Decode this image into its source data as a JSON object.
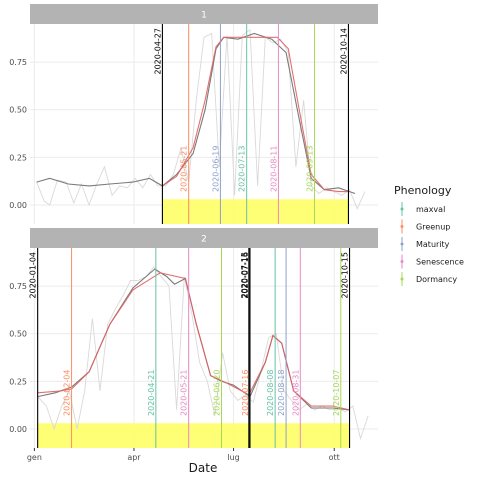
{
  "colors": {
    "strip_bg": "#b3b3b3",
    "strip_text": "#ffffff",
    "grid": "#ebebeb",
    "raw_line": "#d9d9d9",
    "smooth_line": "#7a7a7a",
    "fit_line": "#e06060",
    "fit_line_dark": "#7a2a2a",
    "highlight_band": "#ffff66",
    "cutoff_line": "#000000"
  },
  "x_axis": {
    "title": "Date",
    "ticks": [
      {
        "label": "gen",
        "date": "2020-01-01"
      },
      {
        "label": "apr",
        "date": "2020-04-01"
      },
      {
        "label": "lug",
        "date": "2020-07-01"
      },
      {
        "label": "ott",
        "date": "2020-10-01"
      }
    ],
    "range": [
      "2019-12-28",
      "2020-11-10"
    ]
  },
  "legend": {
    "title": "Phenology",
    "position": "right",
    "items": [
      {
        "label": "maxval",
        "color": "#66c2a5"
      },
      {
        "label": "Greenup",
        "color": "#fc8d62"
      },
      {
        "label": "Maturity",
        "color": "#8da0cb"
      },
      {
        "label": "Senescence",
        "color": "#e78ac3"
      },
      {
        "label": "Dormancy",
        "color": "#a6d854"
      }
    ]
  },
  "chart_data": [
    {
      "type": "line",
      "facet_label": "1",
      "ylim": [
        -0.1,
        0.95
      ],
      "y_ticks": [
        "0.00",
        "0.25",
        "0.50",
        "0.75"
      ],
      "y_tick_values": [
        0,
        0.25,
        0.5,
        0.75
      ],
      "cutoffs": [
        {
          "date": "2020-04-27",
          "label": "2020-04-27"
        },
        {
          "date": "2020-10-14",
          "label": "2020-10-14"
        }
      ],
      "highlight": {
        "from": "2020-04-27",
        "to": "2020-10-14",
        "y_top": 0.03
      },
      "phenology": [
        {
          "type": "Greenup",
          "date": "2020-05-21",
          "label": "2020-05-21",
          "color": "#fc8d62"
        },
        {
          "type": "Maturity",
          "date": "2020-06-19",
          "label": "2020-06-19",
          "color": "#8da0cb"
        },
        {
          "type": "maxval",
          "date": "2020-07-13",
          "label": "2020-07-13",
          "color": "#66c2a5"
        },
        {
          "type": "Senescence",
          "date": "2020-08-11",
          "label": "2020-08-11",
          "color": "#e78ac3"
        },
        {
          "type": "Dormancy",
          "date": "2020-09-13",
          "label": "2020-09-13",
          "color": "#a6d854"
        }
      ],
      "raw": [
        {
          "date": "2020-01-03",
          "y": 0.12
        },
        {
          "date": "2020-01-10",
          "y": 0.02
        },
        {
          "date": "2020-01-15",
          "y": 0.0
        },
        {
          "date": "2020-01-22",
          "y": 0.13
        },
        {
          "date": "2020-01-30",
          "y": 0.12
        },
        {
          "date": "2020-02-06",
          "y": 0.01
        },
        {
          "date": "2020-02-13",
          "y": 0.11
        },
        {
          "date": "2020-02-20",
          "y": 0.0
        },
        {
          "date": "2020-02-27",
          "y": 0.11
        },
        {
          "date": "2020-03-05",
          "y": 0.2
        },
        {
          "date": "2020-03-12",
          "y": 0.05
        },
        {
          "date": "2020-03-19",
          "y": 0.1
        },
        {
          "date": "2020-03-26",
          "y": 0.09
        },
        {
          "date": "2020-04-02",
          "y": 0.14
        },
        {
          "date": "2020-04-09",
          "y": 0.09
        },
        {
          "date": "2020-04-16",
          "y": 0.16
        },
        {
          "date": "2020-04-23",
          "y": 0.1
        },
        {
          "date": "2020-04-30",
          "y": 0.1
        },
        {
          "date": "2020-05-07",
          "y": 0.16
        },
        {
          "date": "2020-05-14",
          "y": 0.3
        },
        {
          "date": "2020-05-21",
          "y": 0.12
        },
        {
          "date": "2020-05-28",
          "y": 0.55
        },
        {
          "date": "2020-06-04",
          "y": 0.88
        },
        {
          "date": "2020-06-11",
          "y": 0.9
        },
        {
          "date": "2020-06-18",
          "y": 0.2
        },
        {
          "date": "2020-06-25",
          "y": 0.89
        },
        {
          "date": "2020-07-02",
          "y": 0.05
        },
        {
          "date": "2020-07-09",
          "y": 0.89
        },
        {
          "date": "2020-07-16",
          "y": 0.92
        },
        {
          "date": "2020-07-23",
          "y": 0.1
        },
        {
          "date": "2020-07-30",
          "y": 0.88
        },
        {
          "date": "2020-08-06",
          "y": 0.85
        },
        {
          "date": "2020-08-13",
          "y": 0.87
        },
        {
          "date": "2020-08-20",
          "y": 0.8
        },
        {
          "date": "2020-08-27",
          "y": 0.2
        },
        {
          "date": "2020-09-03",
          "y": 0.55
        },
        {
          "date": "2020-09-10",
          "y": 0.1
        },
        {
          "date": "2020-09-17",
          "y": 0.06
        },
        {
          "date": "2020-09-24",
          "y": 0.09
        },
        {
          "date": "2020-10-01",
          "y": 0.07
        },
        {
          "date": "2020-10-08",
          "y": 0.05
        },
        {
          "date": "2020-10-15",
          "y": 0.08
        },
        {
          "date": "2020-10-22",
          "y": -0.02
        },
        {
          "date": "2020-10-29",
          "y": 0.07
        }
      ],
      "smooth": [
        {
          "date": "2020-01-03",
          "y": 0.12
        },
        {
          "date": "2020-01-15",
          "y": 0.14
        },
        {
          "date": "2020-02-01",
          "y": 0.11
        },
        {
          "date": "2020-02-20",
          "y": 0.1
        },
        {
          "date": "2020-03-10",
          "y": 0.11
        },
        {
          "date": "2020-03-31",
          "y": 0.12
        },
        {
          "date": "2020-04-15",
          "y": 0.14
        },
        {
          "date": "2020-04-27",
          "y": 0.1
        },
        {
          "date": "2020-05-10",
          "y": 0.16
        },
        {
          "date": "2020-05-25",
          "y": 0.27
        },
        {
          "date": "2020-06-05",
          "y": 0.5
        },
        {
          "date": "2020-06-15",
          "y": 0.82
        },
        {
          "date": "2020-06-22",
          "y": 0.88
        },
        {
          "date": "2020-07-05",
          "y": 0.87
        },
        {
          "date": "2020-07-20",
          "y": 0.9
        },
        {
          "date": "2020-08-05",
          "y": 0.87
        },
        {
          "date": "2020-08-18",
          "y": 0.8
        },
        {
          "date": "2020-08-30",
          "y": 0.45
        },
        {
          "date": "2020-09-10",
          "y": 0.14
        },
        {
          "date": "2020-09-22",
          "y": 0.08
        },
        {
          "date": "2020-10-05",
          "y": 0.09
        },
        {
          "date": "2020-10-20",
          "y": 0.06
        }
      ],
      "fit": [
        {
          "date": "2020-04-27",
          "y": 0.1
        },
        {
          "date": "2020-05-10",
          "y": 0.15
        },
        {
          "date": "2020-05-25",
          "y": 0.3
        },
        {
          "date": "2020-06-05",
          "y": 0.55
        },
        {
          "date": "2020-06-15",
          "y": 0.83
        },
        {
          "date": "2020-06-22",
          "y": 0.88
        },
        {
          "date": "2020-07-15",
          "y": 0.88
        },
        {
          "date": "2020-08-10",
          "y": 0.88
        },
        {
          "date": "2020-08-20",
          "y": 0.82
        },
        {
          "date": "2020-08-30",
          "y": 0.5
        },
        {
          "date": "2020-09-10",
          "y": 0.16
        },
        {
          "date": "2020-09-22",
          "y": 0.08
        },
        {
          "date": "2020-10-05",
          "y": 0.07
        },
        {
          "date": "2020-10-14",
          "y": 0.07
        }
      ]
    },
    {
      "type": "line",
      "facet_label": "2",
      "ylim": [
        -0.1,
        0.95
      ],
      "y_ticks": [
        "0.00",
        "0.25",
        "0.50",
        "0.75"
      ],
      "y_tick_values": [
        0,
        0.25,
        0.5,
        0.75
      ],
      "cutoffs": [
        {
          "date": "2020-01-04",
          "label": "2020-01-04"
        },
        {
          "date": "2020-07-15",
          "label": "2020-07-15"
        },
        {
          "date": "2020-07-16",
          "label": "2020-07-16"
        },
        {
          "date": "2020-10-15",
          "label": "2020-10-15"
        }
      ],
      "highlight": {
        "from": "2020-01-04",
        "to": "2020-10-15",
        "y_top": 0.03
      },
      "phenology": [
        {
          "type": "Greenup",
          "date": "2020-02-04",
          "label": "2020-02-04",
          "color": "#fc8d62"
        },
        {
          "type": "maxval",
          "date": "2020-04-21",
          "label": "2020-04-21",
          "color": "#66c2a5"
        },
        {
          "type": "Senescence",
          "date": "2020-05-21",
          "label": "2020-05-21",
          "color": "#e78ac3"
        },
        {
          "type": "Dormancy",
          "date": "2020-06-20",
          "label": "2020-06-20",
          "color": "#a6d854"
        },
        {
          "type": "Greenup",
          "date": "2020-07-16",
          "label": "2020-07-16",
          "color": "#fc8d62"
        },
        {
          "type": "maxval",
          "date": "2020-08-08",
          "label": "2020-08-08",
          "color": "#66c2a5"
        },
        {
          "type": "Maturity",
          "date": "2020-08-18",
          "label": "2020-08-18",
          "color": "#8da0cb"
        },
        {
          "type": "Senescence",
          "date": "2020-08-31",
          "label": "2020-08-31",
          "color": "#e78ac3"
        },
        {
          "type": "Dormancy",
          "date": "2020-10-07",
          "label": "2020-10-07",
          "color": "#a6d854"
        }
      ],
      "raw": [
        {
          "date": "2020-01-04",
          "y": 0.17
        },
        {
          "date": "2020-01-12",
          "y": 0.12
        },
        {
          "date": "2020-01-19",
          "y": 0.0
        },
        {
          "date": "2020-01-26",
          "y": 0.12
        },
        {
          "date": "2020-02-02",
          "y": 0.2
        },
        {
          "date": "2020-02-09",
          "y": 0.0
        },
        {
          "date": "2020-02-16",
          "y": 0.2
        },
        {
          "date": "2020-02-23",
          "y": 0.58
        },
        {
          "date": "2020-03-01",
          "y": 0.2
        },
        {
          "date": "2020-03-08",
          "y": 0.55
        },
        {
          "date": "2020-03-15",
          "y": 0.63
        },
        {
          "date": "2020-03-22",
          "y": 0.7
        },
        {
          "date": "2020-03-29",
          "y": 0.78
        },
        {
          "date": "2020-04-05",
          "y": 0.78
        },
        {
          "date": "2020-04-12",
          "y": 0.8
        },
        {
          "date": "2020-04-19",
          "y": 0.85
        },
        {
          "date": "2020-04-26",
          "y": 0.8
        },
        {
          "date": "2020-05-03",
          "y": 0.75
        },
        {
          "date": "2020-05-10",
          "y": 0.1
        },
        {
          "date": "2020-05-17",
          "y": 0.8
        },
        {
          "date": "2020-05-24",
          "y": 0.6
        },
        {
          "date": "2020-05-31",
          "y": 0.35
        },
        {
          "date": "2020-06-07",
          "y": 0.25
        },
        {
          "date": "2020-06-14",
          "y": 0.07
        },
        {
          "date": "2020-06-21",
          "y": 0.4
        },
        {
          "date": "2020-06-28",
          "y": 0.2
        },
        {
          "date": "2020-07-05",
          "y": 0.15
        },
        {
          "date": "2020-07-12",
          "y": 0.18
        },
        {
          "date": "2020-07-19",
          "y": 0.14
        },
        {
          "date": "2020-07-26",
          "y": 0.3
        },
        {
          "date": "2020-08-02",
          "y": 0.48
        },
        {
          "date": "2020-08-09",
          "y": 0.5
        },
        {
          "date": "2020-08-16",
          "y": 0.2
        },
        {
          "date": "2020-08-23",
          "y": 0.15
        },
        {
          "date": "2020-08-30",
          "y": 0.1
        },
        {
          "date": "2020-09-06",
          "y": 0.13
        },
        {
          "date": "2020-09-13",
          "y": 0.1
        },
        {
          "date": "2020-09-20",
          "y": 0.12
        },
        {
          "date": "2020-09-27",
          "y": 0.1
        },
        {
          "date": "2020-10-04",
          "y": 0.11
        },
        {
          "date": "2020-10-11",
          "y": 0.09
        },
        {
          "date": "2020-10-18",
          "y": 0.12
        },
        {
          "date": "2020-10-25",
          "y": -0.05
        },
        {
          "date": "2020-11-01",
          "y": 0.07
        }
      ],
      "smooth": [
        {
          "date": "2020-01-04",
          "y": 0.17
        },
        {
          "date": "2020-01-20",
          "y": 0.19
        },
        {
          "date": "2020-02-04",
          "y": 0.22
        },
        {
          "date": "2020-02-20",
          "y": 0.3
        },
        {
          "date": "2020-03-10",
          "y": 0.55
        },
        {
          "date": "2020-03-31",
          "y": 0.74
        },
        {
          "date": "2020-04-20",
          "y": 0.84
        },
        {
          "date": "2020-05-01",
          "y": 0.8
        },
        {
          "date": "2020-05-08",
          "y": 0.76
        },
        {
          "date": "2020-05-18",
          "y": 0.79
        },
        {
          "date": "2020-05-28",
          "y": 0.55
        },
        {
          "date": "2020-06-10",
          "y": 0.28
        },
        {
          "date": "2020-06-20",
          "y": 0.25
        },
        {
          "date": "2020-07-01",
          "y": 0.23
        },
        {
          "date": "2020-07-16",
          "y": 0.17
        },
        {
          "date": "2020-07-30",
          "y": 0.35
        },
        {
          "date": "2020-08-06",
          "y": 0.49
        },
        {
          "date": "2020-08-14",
          "y": 0.45
        },
        {
          "date": "2020-08-25",
          "y": 0.2
        },
        {
          "date": "2020-09-10",
          "y": 0.11
        },
        {
          "date": "2020-09-30",
          "y": 0.11
        },
        {
          "date": "2020-10-15",
          "y": 0.1
        }
      ],
      "fit": [
        {
          "date": "2020-01-04",
          "y": 0.19
        },
        {
          "date": "2020-01-25",
          "y": 0.2
        },
        {
          "date": "2020-02-04",
          "y": 0.21
        },
        {
          "date": "2020-02-20",
          "y": 0.3
        },
        {
          "date": "2020-03-10",
          "y": 0.55
        },
        {
          "date": "2020-03-31",
          "y": 0.73
        },
        {
          "date": "2020-04-25",
          "y": 0.82
        },
        {
          "date": "2020-05-18",
          "y": 0.79
        },
        {
          "date": "2020-05-28",
          "y": 0.55
        },
        {
          "date": "2020-06-10",
          "y": 0.28
        },
        {
          "date": "2020-06-25",
          "y": 0.24
        },
        {
          "date": "2020-07-15",
          "y": 0.18
        },
        {
          "date": "2020-07-30",
          "y": 0.35
        },
        {
          "date": "2020-08-06",
          "y": 0.49
        },
        {
          "date": "2020-08-14",
          "y": 0.45
        },
        {
          "date": "2020-08-25",
          "y": 0.2
        },
        {
          "date": "2020-09-10",
          "y": 0.12
        },
        {
          "date": "2020-09-30",
          "y": 0.12
        },
        {
          "date": "2020-10-15",
          "y": 0.1
        }
      ]
    }
  ]
}
